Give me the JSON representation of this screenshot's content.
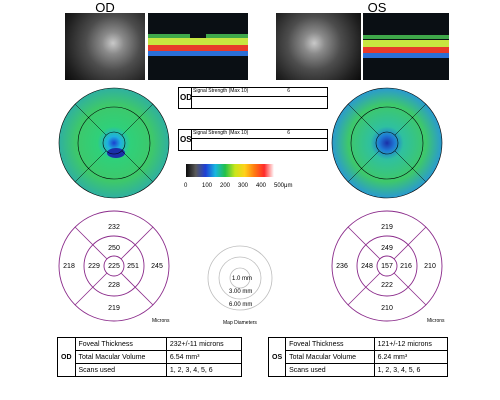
{
  "od": {
    "title": "OD",
    "tag": "OD",
    "signal_label": "Signal Strength (Max 10)",
    "signal_value": "6",
    "grid": {
      "c": "225",
      "in_t": "250",
      "in_n": "251",
      "in_b": "228",
      "in_l": "229",
      "out_t": "232",
      "out_r": "245",
      "out_b": "219",
      "out_l": "218"
    },
    "microns": "Microns",
    "table": {
      "rows": [
        {
          "label": "Foveal Thickness",
          "value": "232+/-11 microns"
        },
        {
          "label": "Total Macular Volume",
          "value": "6.54 mm³"
        },
        {
          "label": "Scans used",
          "value": "1, 2, 3, 4, 5, 6"
        }
      ]
    }
  },
  "os": {
    "title": "OS",
    "tag": "OS",
    "signal_label": "Signal Strength (Max 10)",
    "signal_value": "6",
    "grid": {
      "c": "157",
      "in_t": "249",
      "in_n": "216",
      "in_b": "222",
      "in_l": "248",
      "out_t": "219",
      "out_r": "210",
      "out_b": "210",
      "out_l": "236"
    },
    "microns": "Microns",
    "table": {
      "rows": [
        {
          "label": "Foveal Thickness",
          "value": "121+/-12 microns"
        },
        {
          "label": "Total Macular Volume",
          "value": "6.24 mm³"
        },
        {
          "label": "Scans used",
          "value": "1, 2, 3, 4, 5, 6"
        }
      ]
    }
  },
  "scale": {
    "ticks": [
      "0",
      "100",
      "200",
      "300",
      "400",
      "500μm"
    ],
    "colors": [
      "#0a0a0a",
      "#5a5a5a",
      "#1f3fd6",
      "#19b6e0",
      "#22c04a",
      "#c8e61a",
      "#ffd21a",
      "#ff7a10",
      "#ff2a2a",
      "#ffffff"
    ]
  },
  "map_diameters": {
    "rings": [
      "1.0 mm",
      "3.00 mm",
      "6.00 mm"
    ],
    "label": "Map Diameters"
  }
}
